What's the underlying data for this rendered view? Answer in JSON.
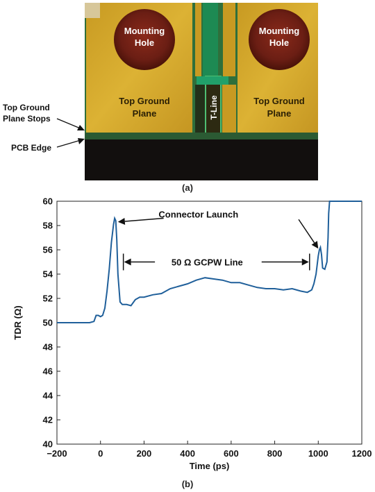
{
  "photo": {
    "left_hole_label": [
      "Mounting",
      "Hole"
    ],
    "right_hole_label": [
      "Mounting",
      "Hole"
    ],
    "left_plane_label": [
      "Top Ground",
      "Plane"
    ],
    "right_plane_label": [
      "Top Ground",
      "Plane"
    ],
    "tline_label": "T-Line",
    "callout_plane_stops": [
      "Top Ground",
      "Plane Stops"
    ],
    "callout_pcb_edge": "PCB Edge",
    "caption": "(a)",
    "colors": {
      "copper": "#d4a92c",
      "substrate": "#2f6f3b",
      "edge": "#120f0e",
      "hole": "#6b1e14"
    }
  },
  "chart_caption": "(b)",
  "chart_data": {
    "type": "line",
    "xlabel": "Time (ps)",
    "ylabel": "TDR (Ω)",
    "xlim": [
      -200,
      1200
    ],
    "ylim": [
      40,
      60
    ],
    "xticks": [
      "−200",
      "0",
      "200",
      "400",
      "600",
      "800",
      "1000",
      "1200"
    ],
    "xtick_values": [
      -200,
      0,
      200,
      400,
      600,
      800,
      1000,
      1200
    ],
    "yticks": [
      "40",
      "42",
      "44",
      "46",
      "48",
      "50",
      "52",
      "54",
      "56",
      "58",
      "60"
    ],
    "ytick_values": [
      40,
      42,
      44,
      46,
      48,
      50,
      52,
      54,
      56,
      58,
      60
    ],
    "grid": false,
    "line_color": "#1f5f9a",
    "annotations": {
      "connector_launch": "Connector Launch",
      "gcpw_line": "50 Ω GCPW Line"
    },
    "series": [
      {
        "x": [
          -200,
          -50,
          -30,
          -20,
          -10,
          0,
          10,
          20,
          30,
          40,
          50,
          60,
          65,
          70,
          75,
          80,
          90,
          100,
          110,
          120,
          140,
          160,
          180,
          200,
          240,
          280,
          320,
          360,
          400,
          440,
          480,
          520,
          560,
          600,
          640,
          680,
          720,
          760,
          800,
          840,
          880,
          920,
          950,
          970,
          980,
          990,
          1000,
          1005,
          1010,
          1015,
          1020,
          1030,
          1040,
          1045,
          1048,
          1052,
          1100,
          1200
        ],
        "y": [
          50.0,
          50.0,
          50.1,
          50.6,
          50.6,
          50.5,
          50.6,
          51.2,
          52.6,
          54.4,
          56.6,
          58.1,
          58.6,
          58.4,
          56.8,
          54.0,
          51.7,
          51.5,
          51.5,
          51.5,
          51.4,
          51.9,
          52.1,
          52.1,
          52.3,
          52.4,
          52.8,
          53.0,
          53.2,
          53.5,
          53.7,
          53.6,
          53.5,
          53.3,
          53.3,
          53.1,
          52.9,
          52.8,
          52.8,
          52.7,
          52.8,
          52.6,
          52.5,
          52.7,
          53.2,
          54.0,
          55.5,
          56.0,
          56.2,
          55.6,
          54.5,
          54.4,
          55.0,
          57.0,
          59.0,
          60.0,
          60.0,
          60.0
        ]
      }
    ]
  }
}
